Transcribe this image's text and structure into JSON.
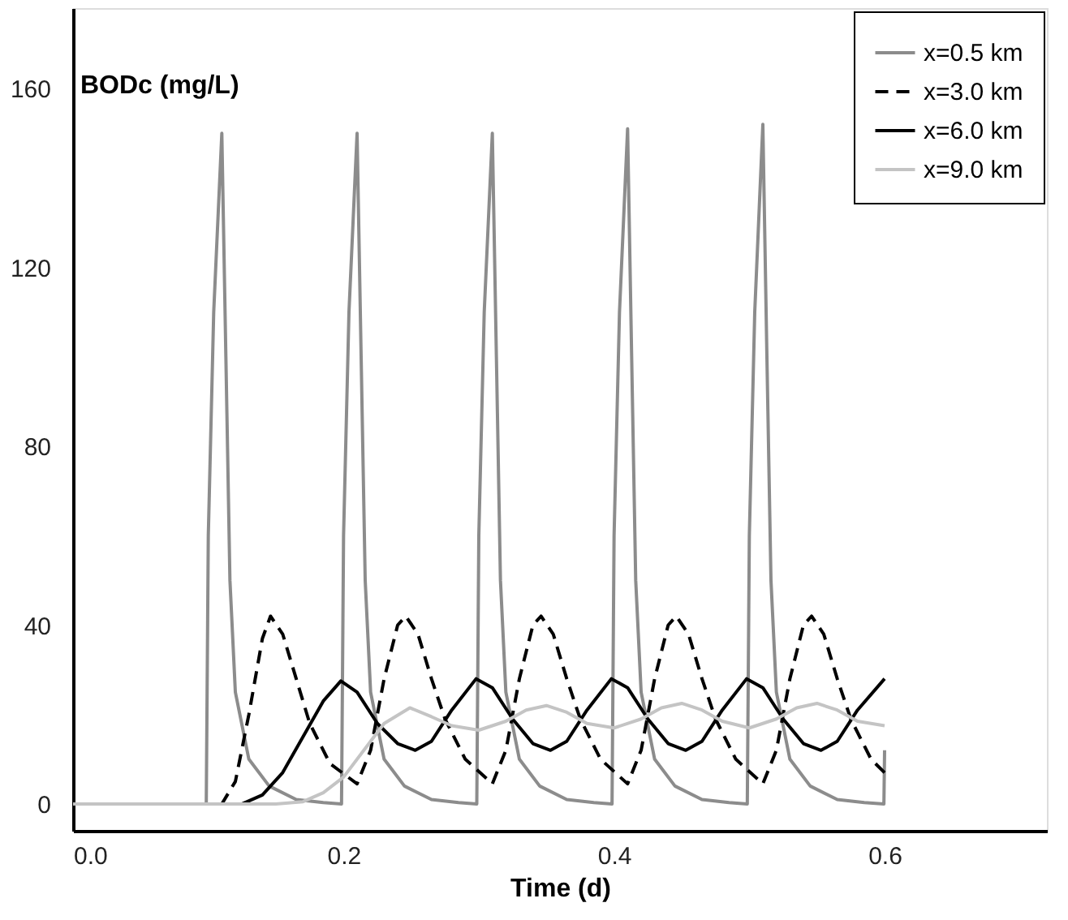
{
  "chart_data": {
    "type": "line",
    "xlabel": "Time (d)",
    "ylabel": "BODc (mg/L)",
    "xlim": [
      0,
      0.72
    ],
    "ylim": [
      -6,
      178
    ],
    "xticks": [
      {
        "value": 0,
        "label": "0.0"
      },
      0.2,
      0.4,
      0.6
    ],
    "yticks": [
      0,
      40,
      80,
      120,
      160
    ],
    "grid": false,
    "legend": "top right",
    "marker": "none",
    "series": [
      {
        "name": "x=0.5 km",
        "color": "#8c8c8c",
        "line_style": "solid",
        "x": [
          0,
          0.0985,
          0.1,
          0.104,
          0.11,
          0.113,
          0.116,
          0.12,
          0.13,
          0.145,
          0.165,
          0.185,
          0.1985,
          0.2,
          0.204,
          0.21,
          0.213,
          0.216,
          0.22,
          0.23,
          0.245,
          0.265,
          0.285,
          0.2985,
          0.3,
          0.304,
          0.31,
          0.313,
          0.316,
          0.32,
          0.33,
          0.345,
          0.365,
          0.385,
          0.3985,
          0.4,
          0.404,
          0.41,
          0.413,
          0.416,
          0.42,
          0.43,
          0.445,
          0.465,
          0.485,
          0.4985,
          0.5,
          0.504,
          0.51,
          0.513,
          0.516,
          0.52,
          0.53,
          0.545,
          0.565,
          0.585,
          0.5995,
          0.6
        ],
        "values": [
          0,
          0,
          60,
          110,
          150,
          100,
          50,
          25,
          10,
          4,
          1,
          0.3,
          0,
          60,
          110,
          150,
          100,
          50,
          25,
          10,
          4,
          1,
          0.3,
          0,
          60,
          110,
          150,
          100,
          50,
          25,
          10,
          4,
          1,
          0.3,
          0,
          60,
          110,
          151,
          100,
          50,
          25,
          10,
          4,
          1,
          0.3,
          0,
          60,
          110,
          152,
          100,
          50,
          25,
          10,
          4,
          1,
          0.3,
          0,
          12
        ]
      },
      {
        "name": "x=3.0 km",
        "color": "#000000",
        "line_style": "dashed",
        "x": [
          0,
          0.11,
          0.12,
          0.13,
          0.14,
          0.146,
          0.155,
          0.165,
          0.175,
          0.19,
          0.21,
          0.22,
          0.23,
          0.24,
          0.246,
          0.255,
          0.265,
          0.275,
          0.29,
          0.31,
          0.32,
          0.33,
          0.34,
          0.346,
          0.355,
          0.365,
          0.375,
          0.39,
          0.41,
          0.42,
          0.43,
          0.44,
          0.446,
          0.455,
          0.465,
          0.475,
          0.49,
          0.51,
          0.52,
          0.53,
          0.54,
          0.546,
          0.555,
          0.565,
          0.575,
          0.59,
          0.6
        ],
        "values": [
          0,
          0,
          5,
          20,
          37,
          42,
          38,
          28,
          18,
          9,
          4.5,
          12,
          28,
          40,
          42,
          38,
          28,
          19,
          10,
          4.5,
          12,
          28,
          40,
          42,
          38,
          28,
          19,
          10,
          4.5,
          12,
          28,
          40,
          42,
          38,
          28,
          19,
          10,
          4.5,
          12,
          28,
          40,
          42,
          38,
          28,
          19,
          10,
          7
        ]
      },
      {
        "name": "x=6.0 km",
        "color": "#000000",
        "line_style": "solid",
        "x": [
          0,
          0.125,
          0.14,
          0.155,
          0.17,
          0.185,
          0.198,
          0.21,
          0.225,
          0.24,
          0.253,
          0.265,
          0.28,
          0.298,
          0.31,
          0.325,
          0.34,
          0.353,
          0.365,
          0.38,
          0.398,
          0.41,
          0.425,
          0.44,
          0.453,
          0.465,
          0.48,
          0.498,
          0.51,
          0.525,
          0.54,
          0.553,
          0.565,
          0.58,
          0.6
        ],
        "values": [
          0,
          0,
          2,
          7,
          15,
          23,
          27.5,
          25,
          18,
          13.5,
          12,
          14,
          21,
          28,
          26,
          19,
          13.5,
          12,
          14,
          21,
          28,
          26,
          19,
          13.5,
          12,
          14,
          21,
          28,
          26,
          19,
          13.5,
          12,
          14,
          21,
          28
        ]
      },
      {
        "name": "x=9.0 km",
        "color": "#c4c4c4",
        "line_style": "solid",
        "x": [
          0,
          0.15,
          0.17,
          0.185,
          0.2,
          0.215,
          0.23,
          0.249,
          0.265,
          0.28,
          0.3,
          0.32,
          0.335,
          0.35,
          0.365,
          0.38,
          0.4,
          0.42,
          0.435,
          0.45,
          0.465,
          0.48,
          0.5,
          0.52,
          0.535,
          0.55,
          0.565,
          0.58,
          0.6
        ],
        "values": [
          0,
          0,
          0.5,
          2.5,
          6,
          12,
          18,
          21.5,
          19.5,
          17.5,
          16.5,
          18.5,
          21,
          22,
          20.5,
          18,
          17,
          19,
          21.5,
          22.5,
          21,
          18.5,
          17,
          19,
          21.5,
          22.5,
          21,
          18.5,
          17.5
        ]
      }
    ]
  }
}
